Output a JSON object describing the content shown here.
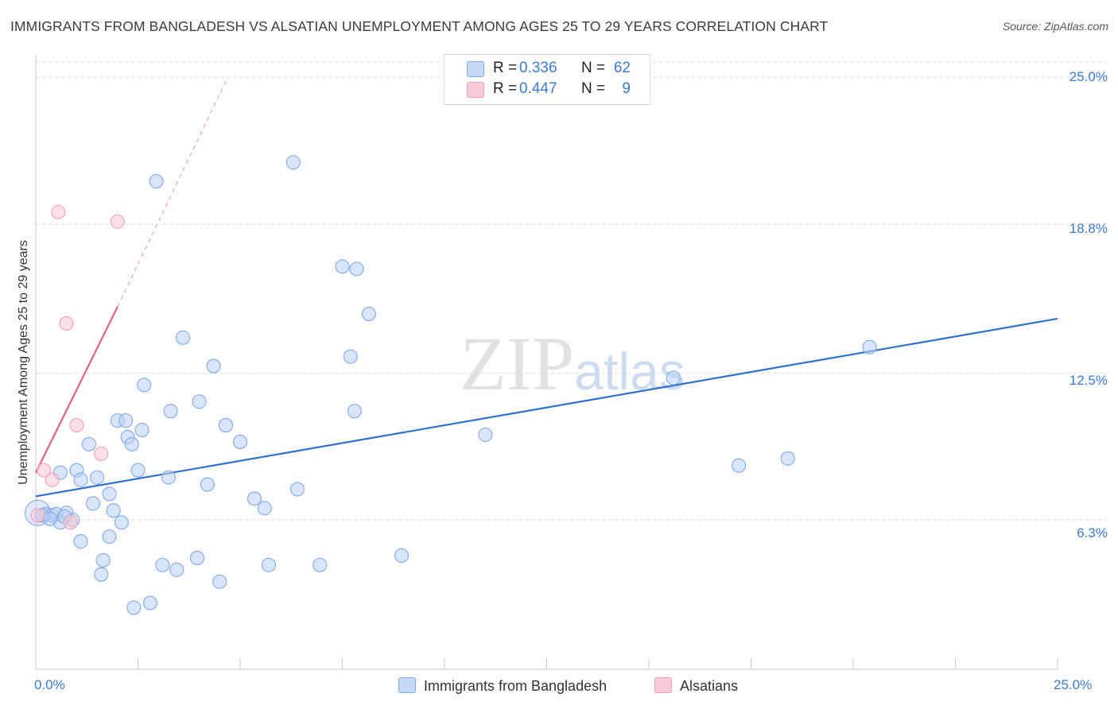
{
  "chart_data": {
    "type": "scatter",
    "title": "IMMIGRANTS FROM BANGLADESH VS ALSATIAN UNEMPLOYMENT AMONG AGES 25 TO 29 YEARS CORRELATION CHART",
    "source": "Source: ZipAtlas.com",
    "xlabel": "",
    "ylabel": "Unemployment Among Ages 25 to 29 years",
    "xlim": [
      0,
      25
    ],
    "ylim": [
      0,
      25.6
    ],
    "x_tick_labels": [
      "0.0%",
      "25.0%"
    ],
    "y_ticks": [
      6.3,
      12.5,
      18.8,
      25.0
    ],
    "y_tick_labels": [
      "6.3%",
      "12.5%",
      "18.8%",
      "25.0%"
    ],
    "grid": true,
    "watermark": "ZIPatlas",
    "legend": {
      "position": "top-center",
      "entries": [
        {
          "r_label": "R =",
          "r_value": "0.336",
          "n_label": "N =",
          "n_value": "62"
        },
        {
          "r_label": "R =",
          "r_value": "0.447",
          "n_label": "N =",
          "n_value": "9"
        }
      ]
    },
    "series": [
      {
        "name": "Immigrants from Bangladesh",
        "color": "#7fa9e8",
        "fill": "#b9d0f3",
        "trend_color": "#2f6fd0",
        "trend": {
          "x": [
            0,
            25
          ],
          "y": [
            7.3,
            14.8
          ]
        },
        "points": [
          [
            0.05,
            6.6
          ],
          [
            0.25,
            6.55
          ],
          [
            0.4,
            6.5
          ],
          [
            0.5,
            6.55
          ],
          [
            0.75,
            6.6
          ],
          [
            0.9,
            6.3
          ],
          [
            0.6,
            6.2
          ],
          [
            0.6,
            8.3
          ],
          [
            1.0,
            8.4
          ],
          [
            1.1,
            8.0
          ],
          [
            1.3,
            9.5
          ],
          [
            1.4,
            7.0
          ],
          [
            1.5,
            8.1
          ],
          [
            1.1,
            5.4
          ],
          [
            1.6,
            4.0
          ],
          [
            1.65,
            4.6
          ],
          [
            1.8,
            5.6
          ],
          [
            1.8,
            7.4
          ],
          [
            1.9,
            6.7
          ],
          [
            2.0,
            10.5
          ],
          [
            2.1,
            6.2
          ],
          [
            2.2,
            10.5
          ],
          [
            2.25,
            9.8
          ],
          [
            2.35,
            9.5
          ],
          [
            2.5,
            8.4
          ],
          [
            2.6,
            10.1
          ],
          [
            2.65,
            12.0
          ],
          [
            2.4,
            2.6
          ],
          [
            2.8,
            2.8
          ],
          [
            2.95,
            20.6
          ],
          [
            3.1,
            4.4
          ],
          [
            3.25,
            8.1
          ],
          [
            3.3,
            10.9
          ],
          [
            3.45,
            4.2
          ],
          [
            3.6,
            14.0
          ],
          [
            3.95,
            4.7
          ],
          [
            4.0,
            11.3
          ],
          [
            4.2,
            7.8
          ],
          [
            4.35,
            12.8
          ],
          [
            4.5,
            3.7
          ],
          [
            4.65,
            10.3
          ],
          [
            5.0,
            9.6
          ],
          [
            5.35,
            7.2
          ],
          [
            5.6,
            6.8
          ],
          [
            5.7,
            4.4
          ],
          [
            6.3,
            21.4
          ],
          [
            6.4,
            7.6
          ],
          [
            6.95,
            4.4
          ],
          [
            7.5,
            17.0
          ],
          [
            7.7,
            13.2
          ],
          [
            7.8,
            10.9
          ],
          [
            7.85,
            16.9
          ],
          [
            8.15,
            15.0
          ],
          [
            8.95,
            4.8
          ],
          [
            11.0,
            9.9
          ],
          [
            15.6,
            12.3
          ],
          [
            17.2,
            8.6
          ],
          [
            18.4,
            8.9
          ],
          [
            20.4,
            13.6
          ],
          [
            0.15,
            6.5
          ],
          [
            0.35,
            6.35
          ],
          [
            0.7,
            6.45
          ]
        ]
      },
      {
        "name": "Alsatians",
        "color": "#f0a0b8",
        "fill": "#f8c6d4",
        "trend_color": "#e0608a",
        "trend": {
          "x": [
            0,
            2.0
          ],
          "y": [
            8.3,
            15.3
          ]
        },
        "trend_extension": {
          "x": [
            2.0,
            4.7
          ],
          "y": [
            15.3,
            25.0
          ]
        },
        "points": [
          [
            0.05,
            6.5
          ],
          [
            0.2,
            8.4
          ],
          [
            0.4,
            8.0
          ],
          [
            0.55,
            19.3
          ],
          [
            0.75,
            14.6
          ],
          [
            1.0,
            10.3
          ],
          [
            1.6,
            9.1
          ],
          [
            2.0,
            18.9
          ],
          [
            0.85,
            6.2
          ]
        ]
      }
    ]
  }
}
